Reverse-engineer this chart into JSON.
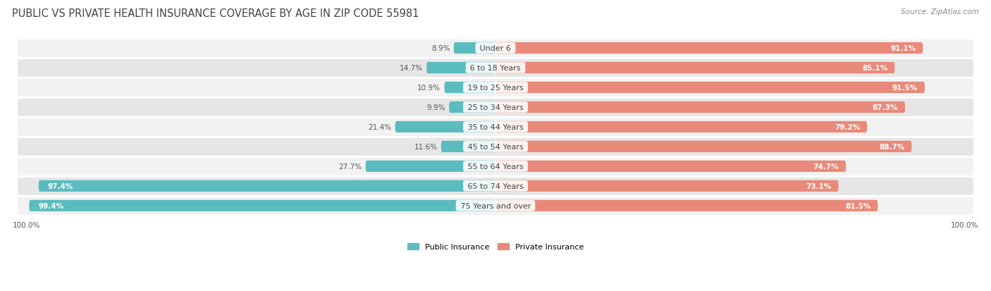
{
  "title": "PUBLIC VS PRIVATE HEALTH INSURANCE COVERAGE BY AGE IN ZIP CODE 55981",
  "source": "Source: ZipAtlas.com",
  "categories": [
    "Under 6",
    "6 to 18 Years",
    "19 to 25 Years",
    "25 to 34 Years",
    "35 to 44 Years",
    "45 to 54 Years",
    "55 to 64 Years",
    "65 to 74 Years",
    "75 Years and over"
  ],
  "public_values": [
    8.9,
    14.7,
    10.9,
    9.9,
    21.4,
    11.6,
    27.7,
    97.4,
    99.4
  ],
  "private_values": [
    91.1,
    85.1,
    91.5,
    87.3,
    79.2,
    88.7,
    74.7,
    73.1,
    81.5
  ],
  "public_color": "#5bbcbf",
  "private_color": "#e8897a",
  "private_color_light": "#f0b0a5",
  "row_bg_color_light": "#f2f2f2",
  "row_bg_color_dark": "#e6e6e6",
  "title_color": "#444444",
  "label_color": "#444444",
  "value_color_light": "#ffffff",
  "value_color_dark": "#555555",
  "source_color": "#888888",
  "legend_public": "Public Insurance",
  "legend_private": "Private Insurance",
  "bar_height": 0.58,
  "title_fontsize": 10.5,
  "label_fontsize": 8,
  "value_fontsize": 7.5,
  "source_fontsize": 7.5,
  "legend_fontsize": 8,
  "axis_label_fontsize": 7.5
}
